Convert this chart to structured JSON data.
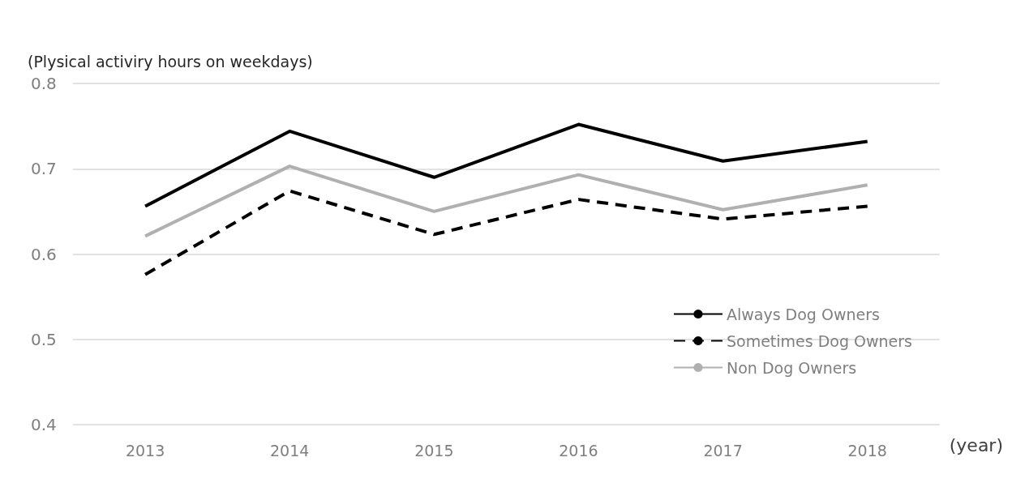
{
  "chart_data": {
    "type": "line",
    "ylabel": "(Plysical activiry hours on weekdays)",
    "xlabel": "(year)",
    "categories": [
      "2013",
      "2014",
      "2015",
      "2016",
      "2017",
      "2018"
    ],
    "series": [
      {
        "name": "Always Dog Owners",
        "color": "#000000",
        "line_style": "solid",
        "values": [
          0.656,
          0.744,
          0.69,
          0.752,
          0.709,
          0.732
        ]
      },
      {
        "name": "Sometimes Dog Owners",
        "color": "#000000",
        "line_style": "dashed",
        "values": [
          0.576,
          0.674,
          0.623,
          0.664,
          0.641,
          0.656
        ]
      },
      {
        "name": "Non Dog Owners",
        "color": "#b0b0b0",
        "line_style": "solid",
        "values": [
          0.621,
          0.703,
          0.65,
          0.693,
          0.652,
          0.681
        ]
      }
    ],
    "ylim": [
      0.4,
      0.8
    ],
    "yticks": [
      0.4,
      0.5,
      0.6,
      0.7,
      0.8
    ],
    "grid": "y",
    "legend": "right",
    "marker": "none"
  }
}
